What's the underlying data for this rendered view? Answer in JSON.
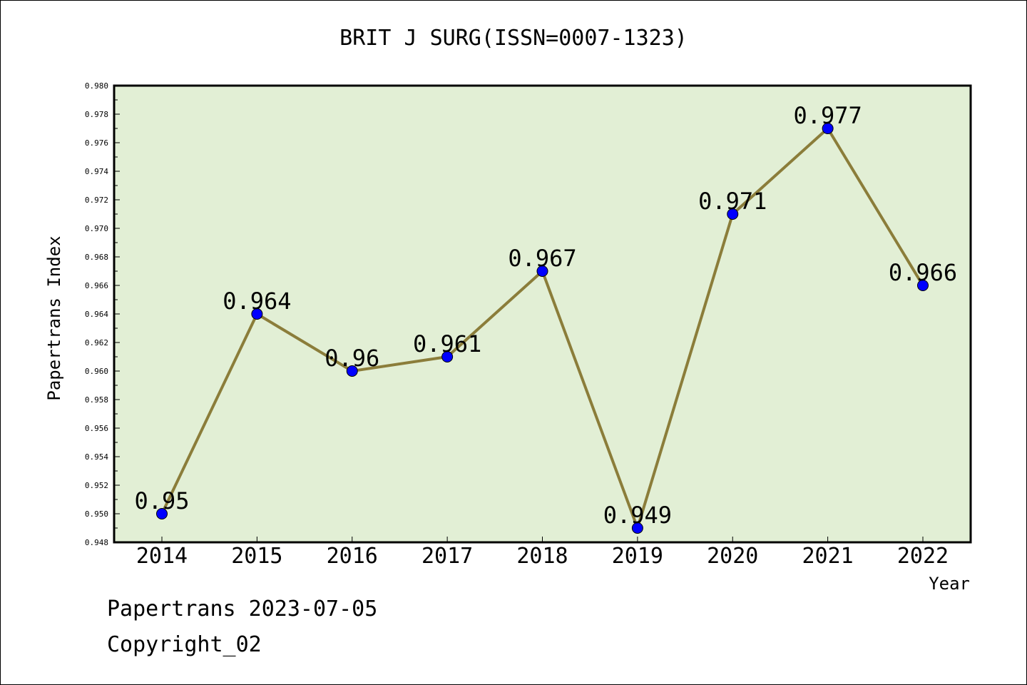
{
  "title": "BRIT J SURG(ISSN=0007-1323)",
  "footer": {
    "line1": "Papertrans 2023-07-05",
    "line2": "Copyright_02"
  },
  "colors": {
    "plot_background": "#e2efd5",
    "line": "#8b7d3a",
    "marker": "#0000ff"
  },
  "chart_data": {
    "type": "line",
    "title": "BRIT J SURG(ISSN=0007-1323)",
    "xlabel": "Year",
    "ylabel": "Papertrans Index",
    "categories": [
      "2014",
      "2015",
      "2016",
      "2017",
      "2018",
      "2019",
      "2020",
      "2021",
      "2022"
    ],
    "series": [
      {
        "values": [
          0.95,
          0.964,
          0.96,
          0.961,
          0.967,
          0.949,
          0.971,
          0.977,
          0.966
        ],
        "labels": [
          "0.95",
          "0.964",
          "0.96",
          "0.961",
          "0.967",
          "0.949",
          "0.971",
          "0.977",
          "0.966"
        ]
      }
    ],
    "ylim": [
      0.948,
      0.98
    ],
    "yticks": [
      "0.948",
      "0.950",
      "0.952",
      "0.954",
      "0.956",
      "0.958",
      "0.960",
      "0.962",
      "0.964",
      "0.966",
      "0.968",
      "0.970",
      "0.972",
      "0.974",
      "0.976",
      "0.978",
      "0.980"
    ],
    "grid": false,
    "legend": "none"
  }
}
